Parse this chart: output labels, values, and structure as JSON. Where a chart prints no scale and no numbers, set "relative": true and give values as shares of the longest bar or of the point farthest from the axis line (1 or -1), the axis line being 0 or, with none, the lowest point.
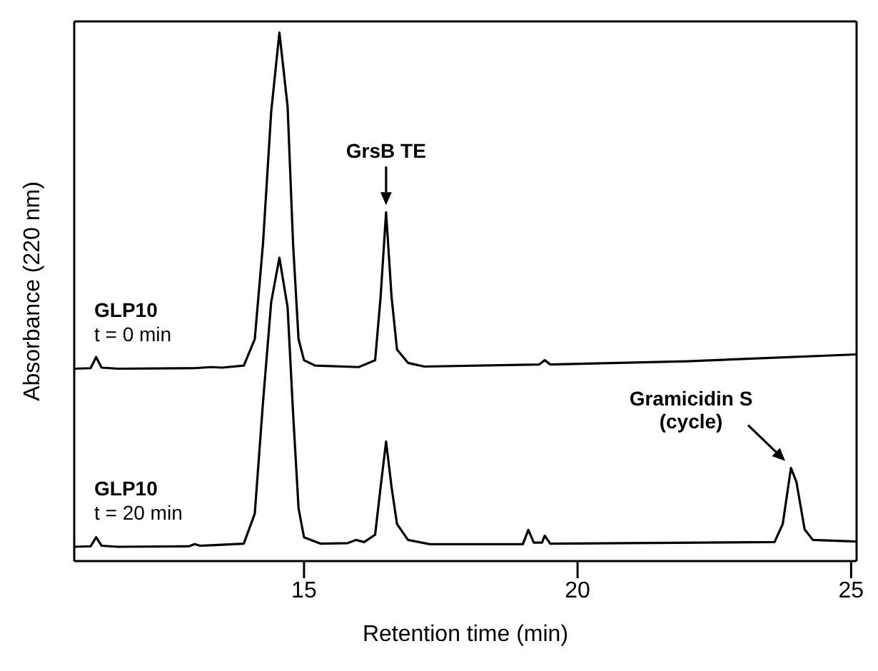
{
  "chart_data": {
    "type": "line",
    "relative": true,
    "xlabel": "Retention time (min)",
    "ylabel": "Absorbance (220 nm)",
    "xlim": [
      10.8,
      25.1
    ],
    "xticks": [
      15,
      20,
      25
    ],
    "grid": false,
    "legend": false,
    "marker": "none",
    "line_style": "solid",
    "annotations": [
      {
        "text": "GrsB TE",
        "x": 16.5,
        "y": 0.66
      },
      {
        "text": "Gramicidin S (cycle)",
        "x": 23.9,
        "y": 0.176
      }
    ],
    "series": [
      {
        "name": "GLP10 t = 0 min",
        "color": "#000000",
        "x": [
          10.8,
          11.1,
          11.2,
          11.3,
          11.6,
          13.0,
          13.3,
          13.5,
          13.9,
          14.1,
          14.25,
          14.4,
          14.55,
          14.7,
          14.8,
          14.9,
          15.0,
          15.2,
          16.0,
          16.3,
          16.4,
          16.5,
          16.6,
          16.7,
          16.9,
          17.2,
          19.3,
          19.4,
          19.5,
          22,
          25.1
        ],
        "values": [
          0.364,
          0.365,
          0.386,
          0.366,
          0.364,
          0.365,
          0.367,
          0.366,
          0.37,
          0.42,
          0.6,
          0.85,
          1.0,
          0.86,
          0.6,
          0.42,
          0.38,
          0.37,
          0.367,
          0.38,
          0.5,
          0.66,
          0.5,
          0.4,
          0.375,
          0.368,
          0.372,
          0.38,
          0.372,
          0.378,
          0.391
        ]
      },
      {
        "name": "GLP10 t = 20 min",
        "color": "#000000",
        "x": [
          10.8,
          11.1,
          11.2,
          11.3,
          11.6,
          12.9,
          13.0,
          13.1,
          13.3,
          13.9,
          14.1,
          14.25,
          14.4,
          14.55,
          14.7,
          14.8,
          14.9,
          15.0,
          15.3,
          15.8,
          15.95,
          16.1,
          16.3,
          16.4,
          16.5,
          16.6,
          16.7,
          16.9,
          17.3,
          19.0,
          19.1,
          19.2,
          19.35,
          19.4,
          19.5,
          23.6,
          23.75,
          23.9,
          24.0,
          24.15,
          24.3,
          25.1
        ],
        "values": [
          0.027,
          0.028,
          0.045,
          0.029,
          0.027,
          0.028,
          0.032,
          0.029,
          0.03,
          0.033,
          0.09,
          0.3,
          0.49,
          0.574,
          0.48,
          0.28,
          0.1,
          0.045,
          0.033,
          0.034,
          0.04,
          0.036,
          0.05,
          0.14,
          0.226,
          0.14,
          0.07,
          0.04,
          0.032,
          0.032,
          0.059,
          0.035,
          0.035,
          0.048,
          0.033,
          0.036,
          0.07,
          0.176,
          0.15,
          0.06,
          0.04,
          0.037
        ]
      }
    ]
  }
}
